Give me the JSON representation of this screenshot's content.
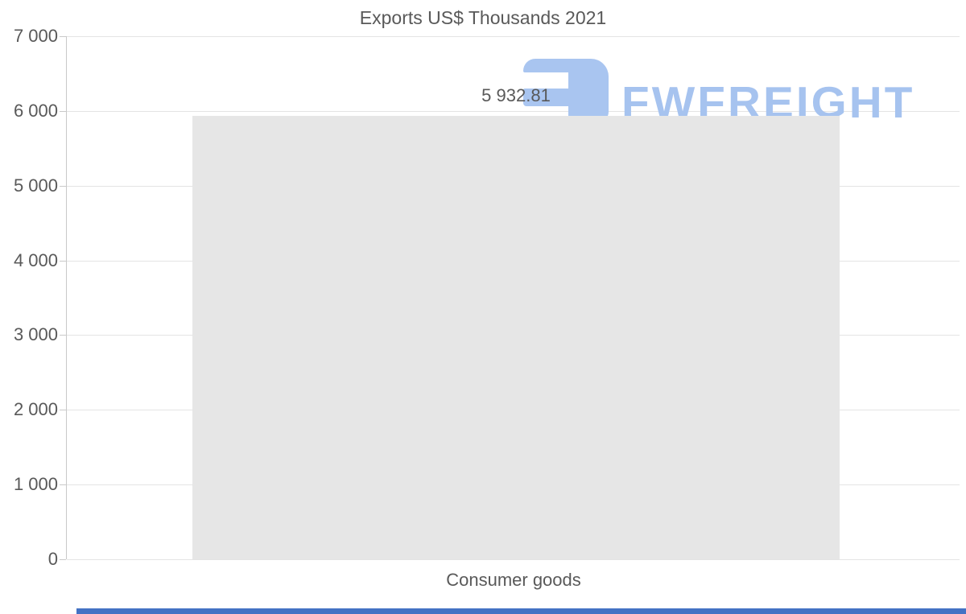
{
  "chart_data": {
    "type": "bar",
    "title": "Exports US$ Thousands 2021",
    "categories": [
      "Consumer goods"
    ],
    "values": [
      5932.81
    ],
    "value_labels": [
      "5 932.81"
    ],
    "xlabel": "",
    "ylabel": "",
    "ylim": [
      0,
      7000
    ],
    "ytick_step": 1000,
    "ytick_labels": [
      "7 000",
      "6 000",
      "5 000",
      "4 000",
      "3 000",
      "2 000",
      "1 000",
      "0"
    ],
    "grid": "horizontal-light",
    "legend": "none",
    "bar_color": "#e6e6e6",
    "text_color": "#595959",
    "axis_color": "#c9c9c9",
    "gridline_color": "#e4e4e4"
  },
  "watermark": {
    "brand": "FWFREIGHT",
    "tagline_fragment": "s",
    "color": "#a6c3ef",
    "icon_color": "#a9c5f0"
  },
  "scrollbar": {
    "color": "#4472c4"
  }
}
